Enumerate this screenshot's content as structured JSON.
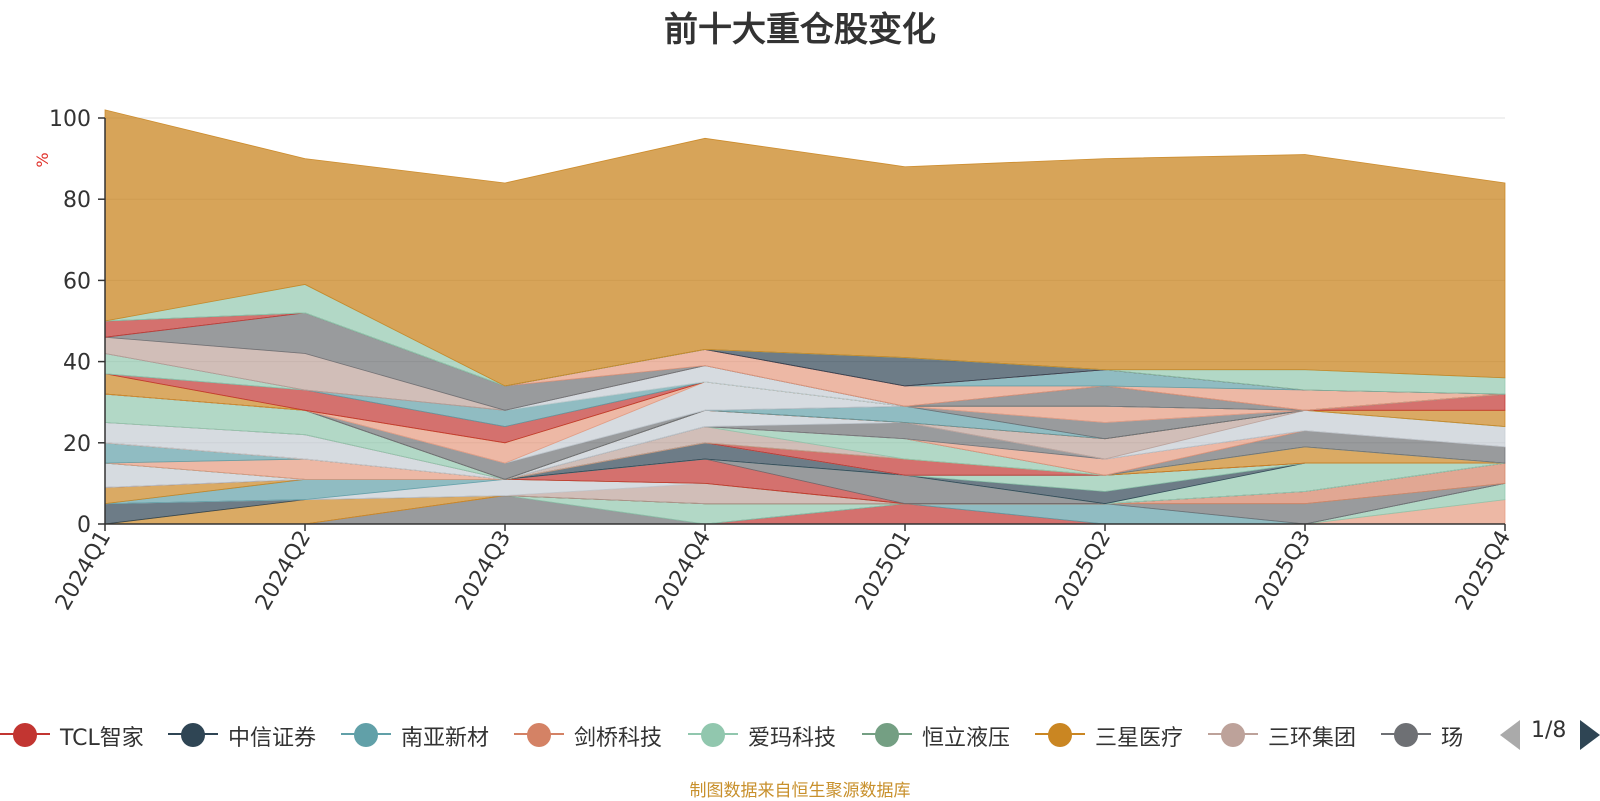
{
  "chart_data": {
    "type": "area",
    "stacked": true,
    "title": "前十大重仓股变化",
    "ylabel": "%",
    "ylim": [
      0,
      100
    ],
    "yticks": [
      0,
      20,
      40,
      60,
      80,
      100
    ],
    "grid": true,
    "categories": [
      "2024Q1",
      "2024Q2",
      "2024Q3",
      "2024Q4",
      "2025Q1",
      "2025Q2",
      "2025Q3",
      "2025Q4"
    ],
    "series": [
      {
        "name": "",
        "color": "#e69a7f",
        "values": [
          0,
          0,
          0,
          0,
          0,
          0,
          0,
          6
        ]
      },
      {
        "name": "",
        "color": "#91c7ae",
        "values": [
          0,
          0,
          0,
          0,
          0,
          0,
          0,
          4
        ]
      },
      {
        "name": "",
        "color": "#c23531",
        "values": [
          0,
          0,
          0,
          0,
          5,
          0,
          0,
          0
        ]
      },
      {
        "name": "",
        "color": "#61a0a8",
        "values": [
          0,
          0,
          0,
          0,
          0,
          5,
          0,
          0
        ]
      },
      {
        "name": "",
        "color": "#6e7074",
        "values": [
          0,
          0,
          7,
          0,
          0,
          0,
          5,
          0
        ]
      },
      {
        "name": "",
        "color": "#91c7ae",
        "values": [
          0,
          0,
          0,
          5,
          0,
          0,
          0,
          0
        ]
      },
      {
        "name": "",
        "color": "#d48265",
        "values": [
          0,
          0,
          0,
          0,
          0,
          0,
          3,
          5
        ]
      },
      {
        "name": "",
        "color": "#c4ccd3",
        "values": [
          0,
          0,
          0,
          0,
          0,
          0,
          0,
          0
        ]
      },
      {
        "name": "",
        "color": "#ca8622",
        "values": [
          0,
          6,
          0,
          0,
          0,
          0,
          0,
          0
        ]
      },
      {
        "name": "",
        "color": "#2f4554",
        "values": [
          5,
          0,
          0,
          0,
          0,
          0,
          0,
          0
        ]
      },
      {
        "name": "",
        "color": "#bda29a",
        "values": [
          0,
          0,
          0,
          5,
          0,
          0,
          0,
          0
        ]
      },
      {
        "name": "",
        "color": "#c4ccd3",
        "values": [
          0,
          0,
          4,
          0,
          0,
          0,
          0,
          0
        ]
      },
      {
        "name": "",
        "color": "#61a0a8",
        "values": [
          0,
          5,
          0,
          0,
          0,
          0,
          0,
          0
        ]
      },
      {
        "name": "",
        "color": "#ca8622",
        "values": [
          4,
          0,
          0,
          0,
          0,
          0,
          0,
          0
        ]
      },
      {
        "name": "",
        "color": "#c23531",
        "values": [
          0,
          0,
          0,
          6,
          0,
          0,
          0,
          0
        ]
      },
      {
        "name": "",
        "color": "#6e7074",
        "values": [
          0,
          0,
          0,
          0,
          7,
          0,
          0,
          0
        ]
      },
      {
        "name": "",
        "color": "#c4ccd3",
        "values": [
          6,
          0,
          0,
          0,
          0,
          0,
          0,
          0
        ]
      },
      {
        "name": "",
        "color": "#91c7ae",
        "values": [
          0,
          0,
          0,
          0,
          0,
          0,
          7,
          0
        ]
      },
      {
        "name": "",
        "color": "#2f4554",
        "values": [
          0,
          0,
          0,
          4,
          0,
          3,
          0,
          0
        ]
      },
      {
        "name": "",
        "color": "#91c7ae",
        "values": [
          0,
          0,
          0,
          0,
          0,
          4,
          0,
          0
        ]
      },
      {
        "name": "",
        "color": "#bda29a",
        "values": [
          0,
          0,
          0,
          0,
          0,
          0,
          0,
          0
        ]
      },
      {
        "name": "",
        "color": "#e69a7f",
        "values": [
          0,
          5,
          0,
          0,
          0,
          0,
          0,
          0
        ]
      },
      {
        "name": "",
        "color": "#61a0a8",
        "values": [
          5,
          0,
          0,
          0,
          0,
          0,
          0,
          0
        ]
      },
      {
        "name": "",
        "color": "#c23531",
        "values": [
          0,
          0,
          0,
          0,
          4,
          0,
          0,
          0
        ]
      },
      {
        "name": "",
        "color": "#ca8622",
        "values": [
          0,
          0,
          0,
          0,
          0,
          0,
          4,
          0
        ]
      },
      {
        "name": "",
        "color": "#bda29a",
        "values": [
          0,
          0,
          0,
          4,
          0,
          0,
          0,
          0
        ]
      },
      {
        "name": "",
        "color": "#91c7ae",
        "values": [
          0,
          0,
          0,
          0,
          5,
          0,
          0,
          0
        ]
      },
      {
        "name": "",
        "color": "#6e7074",
        "values": [
          0,
          0,
          0,
          0,
          0,
          0,
          4,
          4
        ]
      },
      {
        "name": "",
        "color": "#e69a7f",
        "values": [
          0,
          0,
          0,
          0,
          0,
          4,
          0,
          0
        ]
      },
      {
        "name": "",
        "color": "#c4ccd3",
        "values": [
          5,
          6,
          0,
          0,
          0,
          0,
          0,
          0
        ]
      },
      {
        "name": "",
        "color": "#6e7074",
        "values": [
          0,
          0,
          0,
          0,
          4,
          0,
          0,
          0
        ]
      },
      {
        "name": "",
        "color": "#c4ccd3",
        "values": [
          0,
          0,
          0,
          4,
          0,
          0,
          5,
          5
        ]
      },
      {
        "name": "",
        "color": "#bda29a",
        "values": [
          0,
          0,
          0,
          0,
          0,
          5,
          0,
          0
        ]
      },
      {
        "name": "",
        "color": "#91c7ae",
        "values": [
          7,
          6,
          0,
          0,
          0,
          0,
          0,
          0
        ]
      },
      {
        "name": "",
        "color": "#91c7ae",
        "values": [
          0,
          0,
          0,
          0,
          0,
          0,
          0,
          0
        ]
      },
      {
        "name": "",
        "color": "#ca8622",
        "values": [
          0,
          0,
          0,
          0,
          0,
          0,
          0,
          4
        ]
      },
      {
        "name": "",
        "color": "#c23531",
        "values": [
          0,
          0,
          0,
          0,
          0,
          0,
          0,
          4
        ]
      },
      {
        "name": "",
        "color": "#61a0a8",
        "values": [
          0,
          0,
          0,
          0,
          4,
          0,
          0,
          0
        ]
      },
      {
        "name": "",
        "color": "#6e7074",
        "values": [
          0,
          0,
          4,
          0,
          0,
          4,
          0,
          0
        ]
      },
      {
        "name": "",
        "color": "#91c7ae",
        "values": [
          0,
          0,
          0,
          0,
          0,
          0,
          0,
          0
        ]
      },
      {
        "name": "",
        "color": "#c4ccd3",
        "values": [
          0,
          0,
          0,
          7,
          0,
          0,
          0,
          0
        ]
      },
      {
        "name": "",
        "color": "#e69a7f",
        "values": [
          0,
          0,
          5,
          0,
          0,
          4,
          0,
          0
        ]
      },
      {
        "name": "",
        "color": "#ca8622",
        "values": [
          5,
          0,
          0,
          0,
          0,
          0,
          0,
          0
        ]
      },
      {
        "name": "",
        "color": "#c23531",
        "values": [
          0,
          5,
          4,
          0,
          0,
          0,
          0,
          0
        ]
      },
      {
        "name": "",
        "color": "#61a0a8",
        "values": [
          0,
          0,
          4,
          0,
          0,
          0,
          0,
          0
        ]
      },
      {
        "name": "",
        "color": "#91c7ae",
        "values": [
          5,
          0,
          0,
          0,
          0,
          0,
          0,
          0
        ]
      },
      {
        "name": "",
        "color": "#c4ccd3",
        "values": [
          0,
          0,
          0,
          4,
          0,
          0,
          0,
          0
        ]
      },
      {
        "name": "",
        "color": "#6e7074",
        "values": [
          0,
          0,
          0,
          0,
          0,
          5,
          0,
          0
        ]
      },
      {
        "name": "",
        "color": "#bda29a",
        "values": [
          4,
          9,
          0,
          0,
          0,
          0,
          0,
          0
        ]
      },
      {
        "name": "",
        "color": "#6e7074",
        "values": [
          0,
          10,
          6,
          0,
          0,
          0,
          0,
          0
        ]
      },
      {
        "name": "",
        "color": "#e69a7f",
        "values": [
          0,
          0,
          0,
          4,
          5,
          0,
          5,
          0
        ]
      },
      {
        "name": "",
        "color": "#61a0a8",
        "values": [
          0,
          0,
          0,
          0,
          0,
          4,
          0,
          0
        ]
      },
      {
        "name": "",
        "color": "#c23531",
        "values": [
          4,
          0,
          0,
          0,
          0,
          0,
          0,
          0
        ]
      },
      {
        "name": "",
        "color": "#2f4554",
        "values": [
          0,
          0,
          0,
          0,
          7,
          0,
          0,
          0
        ]
      },
      {
        "name": "",
        "color": "#91c7ae",
        "values": [
          0,
          0,
          0,
          0,
          0,
          0,
          5,
          4
        ]
      },
      {
        "name": "",
        "color": "#91c7ae",
        "values": [
          0,
          7,
          0,
          0,
          0,
          0,
          0,
          0
        ]
      },
      {
        "name": "",
        "color": "#ca8622",
        "values": [
          52,
          31,
          50,
          52,
          47,
          52,
          53,
          48
        ]
      }
    ]
  },
  "legend": {
    "items": [
      {
        "label": "TCL智家",
        "color": "#c23531"
      },
      {
        "label": "中信证券",
        "color": "#2f4554"
      },
      {
        "label": "南亚新材",
        "color": "#61a0a8"
      },
      {
        "label": "剑桥科技",
        "color": "#d48265"
      },
      {
        "label": "爱玛科技",
        "color": "#91c7ae"
      },
      {
        "label": "恒立液压",
        "color": "#749f83"
      },
      {
        "label": "三星医疗",
        "color": "#ca8622"
      },
      {
        "label": "三环集团",
        "color": "#bda29a"
      },
      {
        "label": "玚",
        "color": "#6e7074"
      }
    ],
    "page": "1/8"
  },
  "footer": {
    "source": "制图数据来自恒生聚源数据库"
  }
}
